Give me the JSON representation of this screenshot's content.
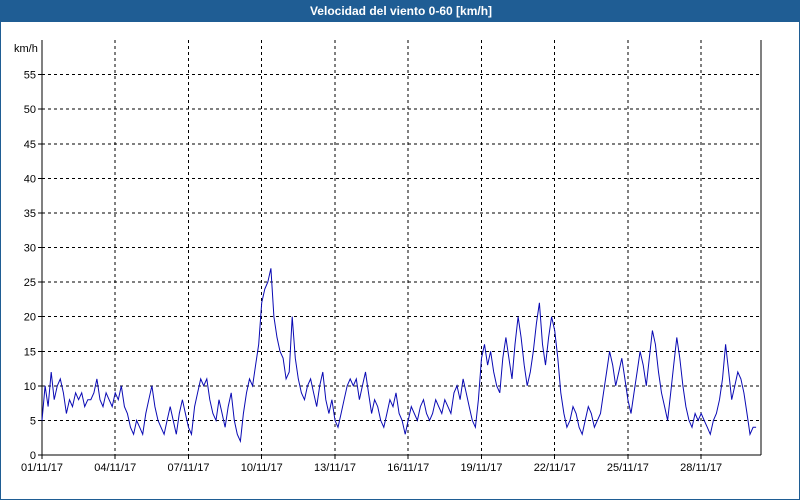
{
  "title": "Velocidad del viento 0-60 [km/h]",
  "colors": {
    "titlebar": "#1f5d94",
    "line": "#0a0ab4",
    "grid": "#000000"
  },
  "chart_data": {
    "type": "line",
    "title": "Velocidad del viento 0-60 [km/h]",
    "ylabel": "km/h",
    "xlabel": "",
    "ylim": [
      0,
      60
    ],
    "yticks": [
      0,
      5,
      10,
      15,
      20,
      25,
      30,
      35,
      40,
      45,
      50,
      55
    ],
    "xlim": [
      "2017-11-01",
      "2017-11-30"
    ],
    "xticks": [
      "01/11/17",
      "04/11/17",
      "07/11/17",
      "10/11/17",
      "13/11/17",
      "16/11/17",
      "19/11/17",
      "22/11/17",
      "25/11/17",
      "28/11/17"
    ],
    "grid": true,
    "series": [
      {
        "values": [
          [
            "2017-11-01 00:00",
            5
          ],
          [
            "2017-11-01 03:00",
            10
          ],
          [
            "2017-11-01 06:00",
            7
          ],
          [
            "2017-11-01 09:00",
            12
          ],
          [
            "2017-11-01 12:00",
            8
          ],
          [
            "2017-11-01 15:00",
            10
          ],
          [
            "2017-11-01 18:00",
            11
          ],
          [
            "2017-11-01 21:00",
            9
          ],
          [
            "2017-11-02 00:00",
            6
          ],
          [
            "2017-11-02 03:00",
            8
          ],
          [
            "2017-11-02 06:00",
            7
          ],
          [
            "2017-11-02 09:00",
            9
          ],
          [
            "2017-11-02 12:00",
            8
          ],
          [
            "2017-11-02 15:00",
            9
          ],
          [
            "2017-11-02 18:00",
            7
          ],
          [
            "2017-11-02 21:00",
            8
          ],
          [
            "2017-11-03 00:00",
            8
          ],
          [
            "2017-11-03 03:00",
            9
          ],
          [
            "2017-11-03 06:00",
            11
          ],
          [
            "2017-11-03 09:00",
            8
          ],
          [
            "2017-11-03 12:00",
            7
          ],
          [
            "2017-11-03 15:00",
            9
          ],
          [
            "2017-11-03 18:00",
            8
          ],
          [
            "2017-11-03 21:00",
            7
          ],
          [
            "2017-11-04 00:00",
            9
          ],
          [
            "2017-11-04 03:00",
            8
          ],
          [
            "2017-11-04 06:00",
            10
          ],
          [
            "2017-11-04 09:00",
            7
          ],
          [
            "2017-11-04 12:00",
            6
          ],
          [
            "2017-11-04 15:00",
            4
          ],
          [
            "2017-11-04 18:00",
            3
          ],
          [
            "2017-11-04 21:00",
            5
          ],
          [
            "2017-11-05 00:00",
            4
          ],
          [
            "2017-11-05 03:00",
            3
          ],
          [
            "2017-11-05 06:00",
            6
          ],
          [
            "2017-11-05 09:00",
            8
          ],
          [
            "2017-11-05 12:00",
            10
          ],
          [
            "2017-11-05 15:00",
            7
          ],
          [
            "2017-11-05 18:00",
            5
          ],
          [
            "2017-11-05 21:00",
            4
          ],
          [
            "2017-11-06 00:00",
            3
          ],
          [
            "2017-11-06 03:00",
            5
          ],
          [
            "2017-11-06 06:00",
            7
          ],
          [
            "2017-11-06 09:00",
            5
          ],
          [
            "2017-11-06 12:00",
            3
          ],
          [
            "2017-11-06 15:00",
            6
          ],
          [
            "2017-11-06 18:00",
            8
          ],
          [
            "2017-11-06 21:00",
            6
          ],
          [
            "2017-11-07 00:00",
            4
          ],
          [
            "2017-11-07 03:00",
            3
          ],
          [
            "2017-11-07 06:00",
            7
          ],
          [
            "2017-11-07 09:00",
            9
          ],
          [
            "2017-11-07 12:00",
            11
          ],
          [
            "2017-11-07 15:00",
            10
          ],
          [
            "2017-11-07 18:00",
            11
          ],
          [
            "2017-11-07 21:00",
            8
          ],
          [
            "2017-11-08 00:00",
            6
          ],
          [
            "2017-11-08 03:00",
            5
          ],
          [
            "2017-11-08 06:00",
            8
          ],
          [
            "2017-11-08 09:00",
            6
          ],
          [
            "2017-11-08 12:00",
            4
          ],
          [
            "2017-11-08 15:00",
            7
          ],
          [
            "2017-11-08 18:00",
            9
          ],
          [
            "2017-11-08 21:00",
            5
          ],
          [
            "2017-11-09 00:00",
            3
          ],
          [
            "2017-11-09 03:00",
            2
          ],
          [
            "2017-11-09 06:00",
            6
          ],
          [
            "2017-11-09 09:00",
            9
          ],
          [
            "2017-11-09 12:00",
            11
          ],
          [
            "2017-11-09 15:00",
            10
          ],
          [
            "2017-11-09 18:00",
            13
          ],
          [
            "2017-11-09 21:00",
            16
          ],
          [
            "2017-11-10 00:00",
            22
          ],
          [
            "2017-11-10 03:00",
            24
          ],
          [
            "2017-11-10 06:00",
            25
          ],
          [
            "2017-11-10 09:00",
            27
          ],
          [
            "2017-11-10 12:00",
            20
          ],
          [
            "2017-11-10 15:00",
            17
          ],
          [
            "2017-11-10 18:00",
            15
          ],
          [
            "2017-11-10 21:00",
            14
          ],
          [
            "2017-11-11 00:00",
            11
          ],
          [
            "2017-11-11 03:00",
            12
          ],
          [
            "2017-11-11 06:00",
            20
          ],
          [
            "2017-11-11 09:00",
            14
          ],
          [
            "2017-11-11 12:00",
            11
          ],
          [
            "2017-11-11 15:00",
            9
          ],
          [
            "2017-11-11 18:00",
            8
          ],
          [
            "2017-11-11 21:00",
            10
          ],
          [
            "2017-11-12 00:00",
            11
          ],
          [
            "2017-11-12 03:00",
            9
          ],
          [
            "2017-11-12 06:00",
            7
          ],
          [
            "2017-11-12 09:00",
            10
          ],
          [
            "2017-11-12 12:00",
            12
          ],
          [
            "2017-11-12 15:00",
            8
          ],
          [
            "2017-11-12 18:00",
            6
          ],
          [
            "2017-11-12 21:00",
            8
          ],
          [
            "2017-11-13 00:00",
            5
          ],
          [
            "2017-11-13 03:00",
            4
          ],
          [
            "2017-11-13 06:00",
            6
          ],
          [
            "2017-11-13 09:00",
            8
          ],
          [
            "2017-11-13 12:00",
            10
          ],
          [
            "2017-11-13 15:00",
            11
          ],
          [
            "2017-11-13 18:00",
            10
          ],
          [
            "2017-11-13 21:00",
            11
          ],
          [
            "2017-11-14 00:00",
            8
          ],
          [
            "2017-11-14 03:00",
            10
          ],
          [
            "2017-11-14 06:00",
            12
          ],
          [
            "2017-11-14 09:00",
            9
          ],
          [
            "2017-11-14 12:00",
            6
          ],
          [
            "2017-11-14 15:00",
            8
          ],
          [
            "2017-11-14 18:00",
            7
          ],
          [
            "2017-11-14 21:00",
            5
          ],
          [
            "2017-11-15 00:00",
            4
          ],
          [
            "2017-11-15 03:00",
            6
          ],
          [
            "2017-11-15 06:00",
            8
          ],
          [
            "2017-11-15 09:00",
            7
          ],
          [
            "2017-11-15 12:00",
            9
          ],
          [
            "2017-11-15 15:00",
            6
          ],
          [
            "2017-11-15 18:00",
            5
          ],
          [
            "2017-11-15 21:00",
            3
          ],
          [
            "2017-11-16 00:00",
            5
          ],
          [
            "2017-11-16 03:00",
            7
          ],
          [
            "2017-11-16 06:00",
            6
          ],
          [
            "2017-11-16 09:00",
            5
          ],
          [
            "2017-11-16 12:00",
            7
          ],
          [
            "2017-11-16 15:00",
            8
          ],
          [
            "2017-11-16 18:00",
            6
          ],
          [
            "2017-11-16 21:00",
            5
          ],
          [
            "2017-11-17 00:00",
            6
          ],
          [
            "2017-11-17 03:00",
            8
          ],
          [
            "2017-11-17 06:00",
            7
          ],
          [
            "2017-11-17 09:00",
            6
          ],
          [
            "2017-11-17 12:00",
            8
          ],
          [
            "2017-11-17 15:00",
            7
          ],
          [
            "2017-11-17 18:00",
            6
          ],
          [
            "2017-11-17 21:00",
            9
          ],
          [
            "2017-11-18 00:00",
            10
          ],
          [
            "2017-11-18 03:00",
            8
          ],
          [
            "2017-11-18 06:00",
            11
          ],
          [
            "2017-11-18 09:00",
            9
          ],
          [
            "2017-11-18 12:00",
            7
          ],
          [
            "2017-11-18 15:00",
            5
          ],
          [
            "2017-11-18 18:00",
            4
          ],
          [
            "2017-11-18 21:00",
            8
          ],
          [
            "2017-11-19 00:00",
            14
          ],
          [
            "2017-11-19 03:00",
            16
          ],
          [
            "2017-11-19 06:00",
            13
          ],
          [
            "2017-11-19 09:00",
            15
          ],
          [
            "2017-11-19 12:00",
            12
          ],
          [
            "2017-11-19 15:00",
            10
          ],
          [
            "2017-11-19 18:00",
            9
          ],
          [
            "2017-11-19 21:00",
            14
          ],
          [
            "2017-11-20 00:00",
            17
          ],
          [
            "2017-11-20 03:00",
            14
          ],
          [
            "2017-11-20 06:00",
            11
          ],
          [
            "2017-11-20 09:00",
            16
          ],
          [
            "2017-11-20 12:00",
            20
          ],
          [
            "2017-11-20 15:00",
            17
          ],
          [
            "2017-11-20 18:00",
            13
          ],
          [
            "2017-11-20 21:00",
            10
          ],
          [
            "2017-11-21 00:00",
            12
          ],
          [
            "2017-11-21 03:00",
            15
          ],
          [
            "2017-11-21 06:00",
            19
          ],
          [
            "2017-11-21 09:00",
            22
          ],
          [
            "2017-11-21 12:00",
            16
          ],
          [
            "2017-11-21 15:00",
            13
          ],
          [
            "2017-11-21 18:00",
            17
          ],
          [
            "2017-11-21 21:00",
            20
          ],
          [
            "2017-11-22 00:00",
            18
          ],
          [
            "2017-11-22 03:00",
            14
          ],
          [
            "2017-11-22 06:00",
            9
          ],
          [
            "2017-11-22 09:00",
            6
          ],
          [
            "2017-11-22 12:00",
            4
          ],
          [
            "2017-11-22 15:00",
            5
          ],
          [
            "2017-11-22 18:00",
            7
          ],
          [
            "2017-11-22 21:00",
            6
          ],
          [
            "2017-11-23 00:00",
            4
          ],
          [
            "2017-11-23 03:00",
            3
          ],
          [
            "2017-11-23 06:00",
            5
          ],
          [
            "2017-11-23 09:00",
            7
          ],
          [
            "2017-11-23 12:00",
            6
          ],
          [
            "2017-11-23 15:00",
            4
          ],
          [
            "2017-11-23 18:00",
            5
          ],
          [
            "2017-11-23 21:00",
            6
          ],
          [
            "2017-11-24 00:00",
            9
          ],
          [
            "2017-11-24 03:00",
            12
          ],
          [
            "2017-11-24 06:00",
            15
          ],
          [
            "2017-11-24 09:00",
            13
          ],
          [
            "2017-11-24 12:00",
            10
          ],
          [
            "2017-11-24 15:00",
            12
          ],
          [
            "2017-11-24 18:00",
            14
          ],
          [
            "2017-11-24 21:00",
            11
          ],
          [
            "2017-11-25 00:00",
            8
          ],
          [
            "2017-11-25 03:00",
            6
          ],
          [
            "2017-11-25 06:00",
            9
          ],
          [
            "2017-11-25 09:00",
            12
          ],
          [
            "2017-11-25 12:00",
            15
          ],
          [
            "2017-11-25 15:00",
            13
          ],
          [
            "2017-11-25 18:00",
            10
          ],
          [
            "2017-11-25 21:00",
            14
          ],
          [
            "2017-11-26 00:00",
            18
          ],
          [
            "2017-11-26 03:00",
            16
          ],
          [
            "2017-11-26 06:00",
            12
          ],
          [
            "2017-11-26 09:00",
            9
          ],
          [
            "2017-11-26 12:00",
            7
          ],
          [
            "2017-11-26 15:00",
            5
          ],
          [
            "2017-11-26 18:00",
            9
          ],
          [
            "2017-11-26 21:00",
            13
          ],
          [
            "2017-11-27 00:00",
            17
          ],
          [
            "2017-11-27 03:00",
            14
          ],
          [
            "2017-11-27 06:00",
            10
          ],
          [
            "2017-11-27 09:00",
            7
          ],
          [
            "2017-11-27 12:00",
            5
          ],
          [
            "2017-11-27 15:00",
            4
          ],
          [
            "2017-11-27 18:00",
            6
          ],
          [
            "2017-11-27 21:00",
            5
          ],
          [
            "2017-11-28 00:00",
            6
          ],
          [
            "2017-11-28 03:00",
            5
          ],
          [
            "2017-11-28 06:00",
            4
          ],
          [
            "2017-11-28 09:00",
            3
          ],
          [
            "2017-11-28 12:00",
            5
          ],
          [
            "2017-11-28 15:00",
            6
          ],
          [
            "2017-11-28 18:00",
            8
          ],
          [
            "2017-11-28 21:00",
            11
          ],
          [
            "2017-11-29 00:00",
            16
          ],
          [
            "2017-11-29 03:00",
            12
          ],
          [
            "2017-11-29 06:00",
            8
          ],
          [
            "2017-11-29 09:00",
            10
          ],
          [
            "2017-11-29 12:00",
            12
          ],
          [
            "2017-11-29 15:00",
            11
          ],
          [
            "2017-11-29 18:00",
            9
          ],
          [
            "2017-11-29 21:00",
            6
          ],
          [
            "2017-11-30 00:00",
            3
          ],
          [
            "2017-11-30 03:00",
            4
          ],
          [
            "2017-11-30 06:00",
            4
          ]
        ]
      }
    ]
  }
}
